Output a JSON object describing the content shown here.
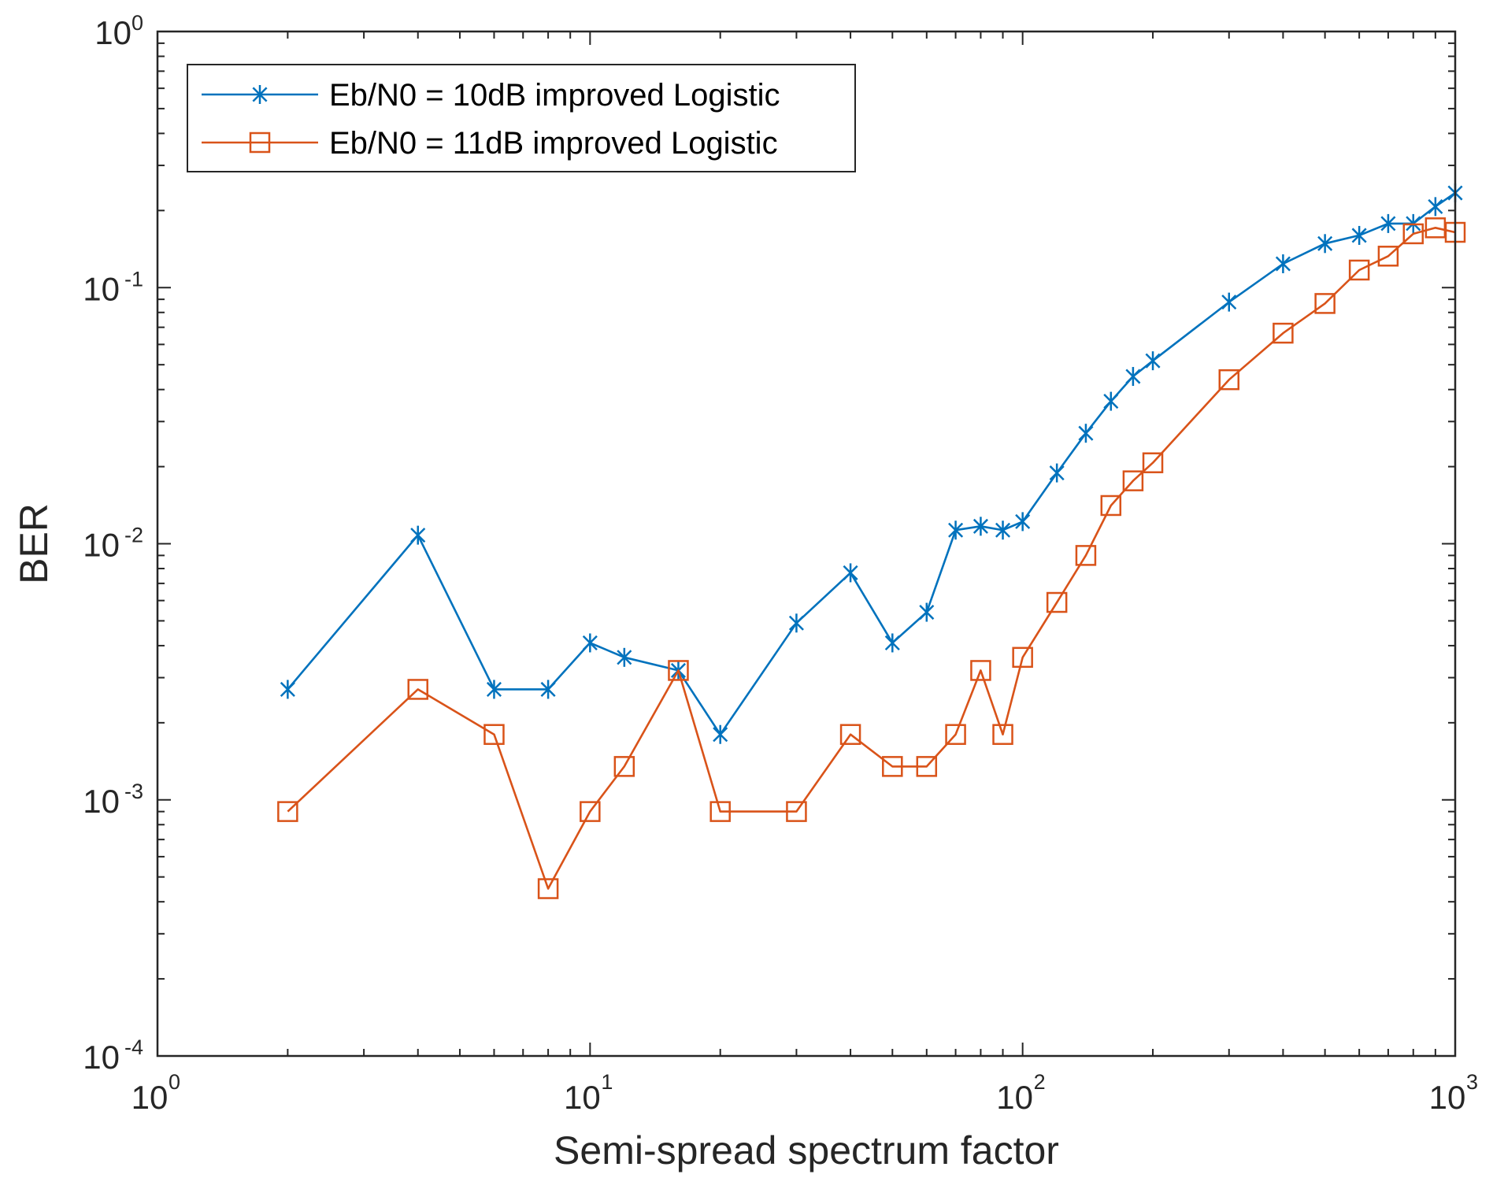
{
  "chart_data": {
    "type": "line",
    "xscale": "log",
    "yscale": "log",
    "xlim": [
      1,
      1000
    ],
    "ylim": [
      0.0001,
      1
    ],
    "xlabel": "Semi-spread spectrum factor",
    "ylabel": "BER",
    "grid": false,
    "legend_position": "top-left",
    "x_ticks": [
      {
        "base": "10",
        "exp": "0",
        "value": 1
      },
      {
        "base": "10",
        "exp": "1",
        "value": 10
      },
      {
        "base": "10",
        "exp": "2",
        "value": 100
      },
      {
        "base": "10",
        "exp": "3",
        "value": 1000
      }
    ],
    "y_ticks": [
      {
        "base": "10",
        "exp": "-4",
        "value": 0.0001
      },
      {
        "base": "10",
        "exp": "-3",
        "value": 0.001
      },
      {
        "base": "10",
        "exp": "-2",
        "value": 0.01
      },
      {
        "base": "10",
        "exp": "-1",
        "value": 0.1
      },
      {
        "base": "10",
        "exp": "0",
        "value": 1
      }
    ],
    "series": [
      {
        "name": "Eb/N0 = 10dB improved Logistic",
        "color": "#0072BD",
        "marker": "asterisk",
        "x": [
          2,
          4,
          6,
          8,
          10,
          12,
          16,
          20,
          30,
          40,
          50,
          60,
          70,
          80,
          90,
          100,
          120,
          140,
          160,
          180,
          200,
          300,
          400,
          500,
          600,
          700,
          800,
          900,
          1000
        ],
        "y": [
          0.0027,
          0.0108,
          0.0027,
          0.0027,
          0.0041,
          0.0036,
          0.0032,
          0.0018,
          0.0049,
          0.0077,
          0.0041,
          0.0054,
          0.0113,
          0.0117,
          0.0113,
          0.0122,
          0.0189,
          0.027,
          0.036,
          0.045,
          0.0518,
          0.0878,
          0.1239,
          0.1486,
          0.1599,
          0.1779,
          0.1779,
          0.2072,
          0.2342
        ]
      },
      {
        "name": "Eb/N0 = 11dB improved Logistic",
        "color": "#D95319",
        "marker": "square",
        "x": [
          2,
          4,
          6,
          8,
          10,
          12,
          16,
          20,
          30,
          40,
          50,
          60,
          70,
          80,
          90,
          100,
          120,
          140,
          160,
          180,
          200,
          300,
          400,
          500,
          600,
          700,
          800,
          900,
          1000
        ],
        "y": [
          0.0009,
          0.0027,
          0.0018,
          0.00045,
          0.0009,
          0.00135,
          0.0032,
          0.0009,
          0.0009,
          0.0018,
          0.00135,
          0.00135,
          0.0018,
          0.0032,
          0.0018,
          0.0036,
          0.0059,
          0.009,
          0.0141,
          0.0176,
          0.0207,
          0.0437,
          0.0664,
          0.0867,
          0.1171,
          0.1327,
          0.1622,
          0.1712,
          0.1644
        ]
      }
    ]
  }
}
